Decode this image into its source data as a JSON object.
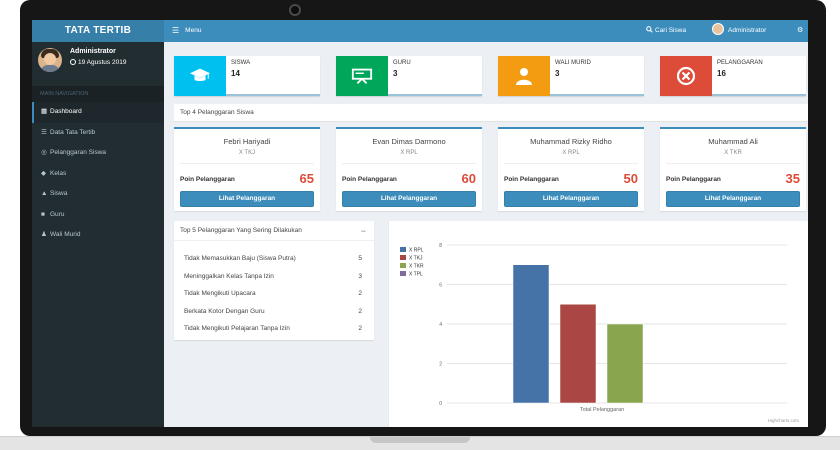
{
  "app": {
    "logo": "TATA TERTIB",
    "menu_label": "Menu",
    "search_label": "Cari Siswa",
    "admin_label": "Administrator"
  },
  "user": {
    "name": "Administrator",
    "date": "19 Agustus 2019"
  },
  "sidebar": {
    "header": "MAIN NAVIGATION",
    "items": [
      {
        "label": "Dashboard",
        "icon": "dashboard-icon",
        "active": true
      },
      {
        "label": "Data Tata Tertib",
        "icon": "list-icon",
        "active": false
      },
      {
        "label": "Pelanggaran Siswa",
        "icon": "circle-icon",
        "active": false
      },
      {
        "label": "Kelas",
        "icon": "tags-icon",
        "active": false
      },
      {
        "label": "Siswa",
        "icon": "graduation-cap-icon",
        "active": false
      },
      {
        "label": "Guru",
        "icon": "briefcase-icon",
        "active": false
      },
      {
        "label": "Wali Murid",
        "icon": "user-icon",
        "active": false
      }
    ]
  },
  "info_boxes": [
    {
      "label": "SISWA",
      "value": "14",
      "color": "#00c0ef",
      "icon": "graduation-cap-icon"
    },
    {
      "label": "GURU",
      "value": "3",
      "color": "#00a65a",
      "icon": "teacher-board-icon"
    },
    {
      "label": "WALI MURID",
      "value": "3",
      "color": "#f39c12",
      "icon": "user-icon"
    },
    {
      "label": "PELANGGARAN",
      "value": "16",
      "color": "#dd4b39",
      "icon": "times-circle-icon"
    }
  ],
  "top4": {
    "title": "Top 4 Pelanggaran Siswa",
    "points_label": "Poin Pelanggaran",
    "button_label": "Lihat Pelanggaran",
    "students": [
      {
        "name": "Febri Hariyadi",
        "class": "X TKJ",
        "points": "65"
      },
      {
        "name": "Evan Dimas Darmono",
        "class": "X RPL",
        "points": "60"
      },
      {
        "name": "Muhammad Rizky Ridho",
        "class": "X RPL",
        "points": "50"
      },
      {
        "name": "Muhammad Ali",
        "class": "X TKR",
        "points": "35"
      }
    ]
  },
  "top5": {
    "title": "Top 5 Pelanggaran Yang Sering Dilakukan",
    "collapse_symbol": "−",
    "items": [
      {
        "label": "Tidak Memasukkan Baju (Siswa Putra)",
        "count": "5"
      },
      {
        "label": "Meninggalkan Kelas Tanpa Izin",
        "count": "3"
      },
      {
        "label": "Tidak Mengikuti Upacara",
        "count": "2"
      },
      {
        "label": "Berkata Kotor Dengan Guru",
        "count": "2"
      },
      {
        "label": "Tidak Mengikuti Pelajaran Tanpa Izin",
        "count": "2"
      }
    ]
  },
  "chart_data": {
    "type": "bar",
    "title": "",
    "categories": [
      "Total Pelanggaran"
    ],
    "xlabel": "",
    "ylabel": "",
    "ylim": [
      0,
      8
    ],
    "yticks": [
      "0",
      "2",
      "4",
      "6",
      "8"
    ],
    "grid": true,
    "legend": "top-left",
    "series": [
      {
        "name": "X RPL",
        "values": [
          7
        ],
        "color": "#4572a7"
      },
      {
        "name": "X TKJ",
        "values": [
          5
        ],
        "color": "#aa4643"
      },
      {
        "name": "X TKR",
        "values": [
          4
        ],
        "color": "#89a54e"
      },
      {
        "name": "X TPL",
        "values": [
          0
        ],
        "color": "#80699b"
      }
    ],
    "credit": "Highcharts.com"
  }
}
